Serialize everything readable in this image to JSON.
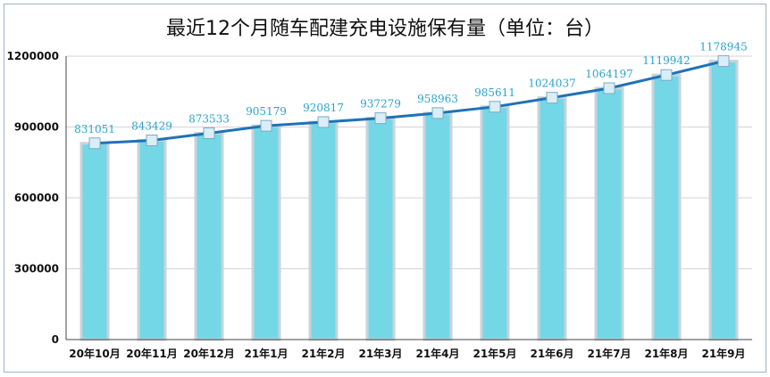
{
  "chart_data": {
    "type": "bar",
    "title": "最近12个月随车配建充电设施保有量（单位：台）",
    "categories": [
      "20年10月",
      "20年11月",
      "20年12月",
      "21年1月",
      "21年2月",
      "21年3月",
      "21年4月",
      "21年5月",
      "21年6月",
      "21年7月",
      "21年8月",
      "21年9月"
    ],
    "series": [
      {
        "values": [
          831051,
          843429,
          873533,
          905179,
          920817,
          937279,
          958963,
          985611,
          1024037,
          1064197,
          1119942,
          1178945
        ]
      }
    ],
    "overlay_line": true,
    "ylim": [
      0,
      1200000
    ],
    "yticks": [
      0,
      300000,
      600000,
      900000,
      1200000
    ],
    "grid": true,
    "legend": "none",
    "colors": {
      "bar": "#73d7e6",
      "bar_edge": "#c9d3da",
      "line": "#1f72b8",
      "marker": "#d9eef7",
      "label": "#2aa3cf"
    }
  }
}
